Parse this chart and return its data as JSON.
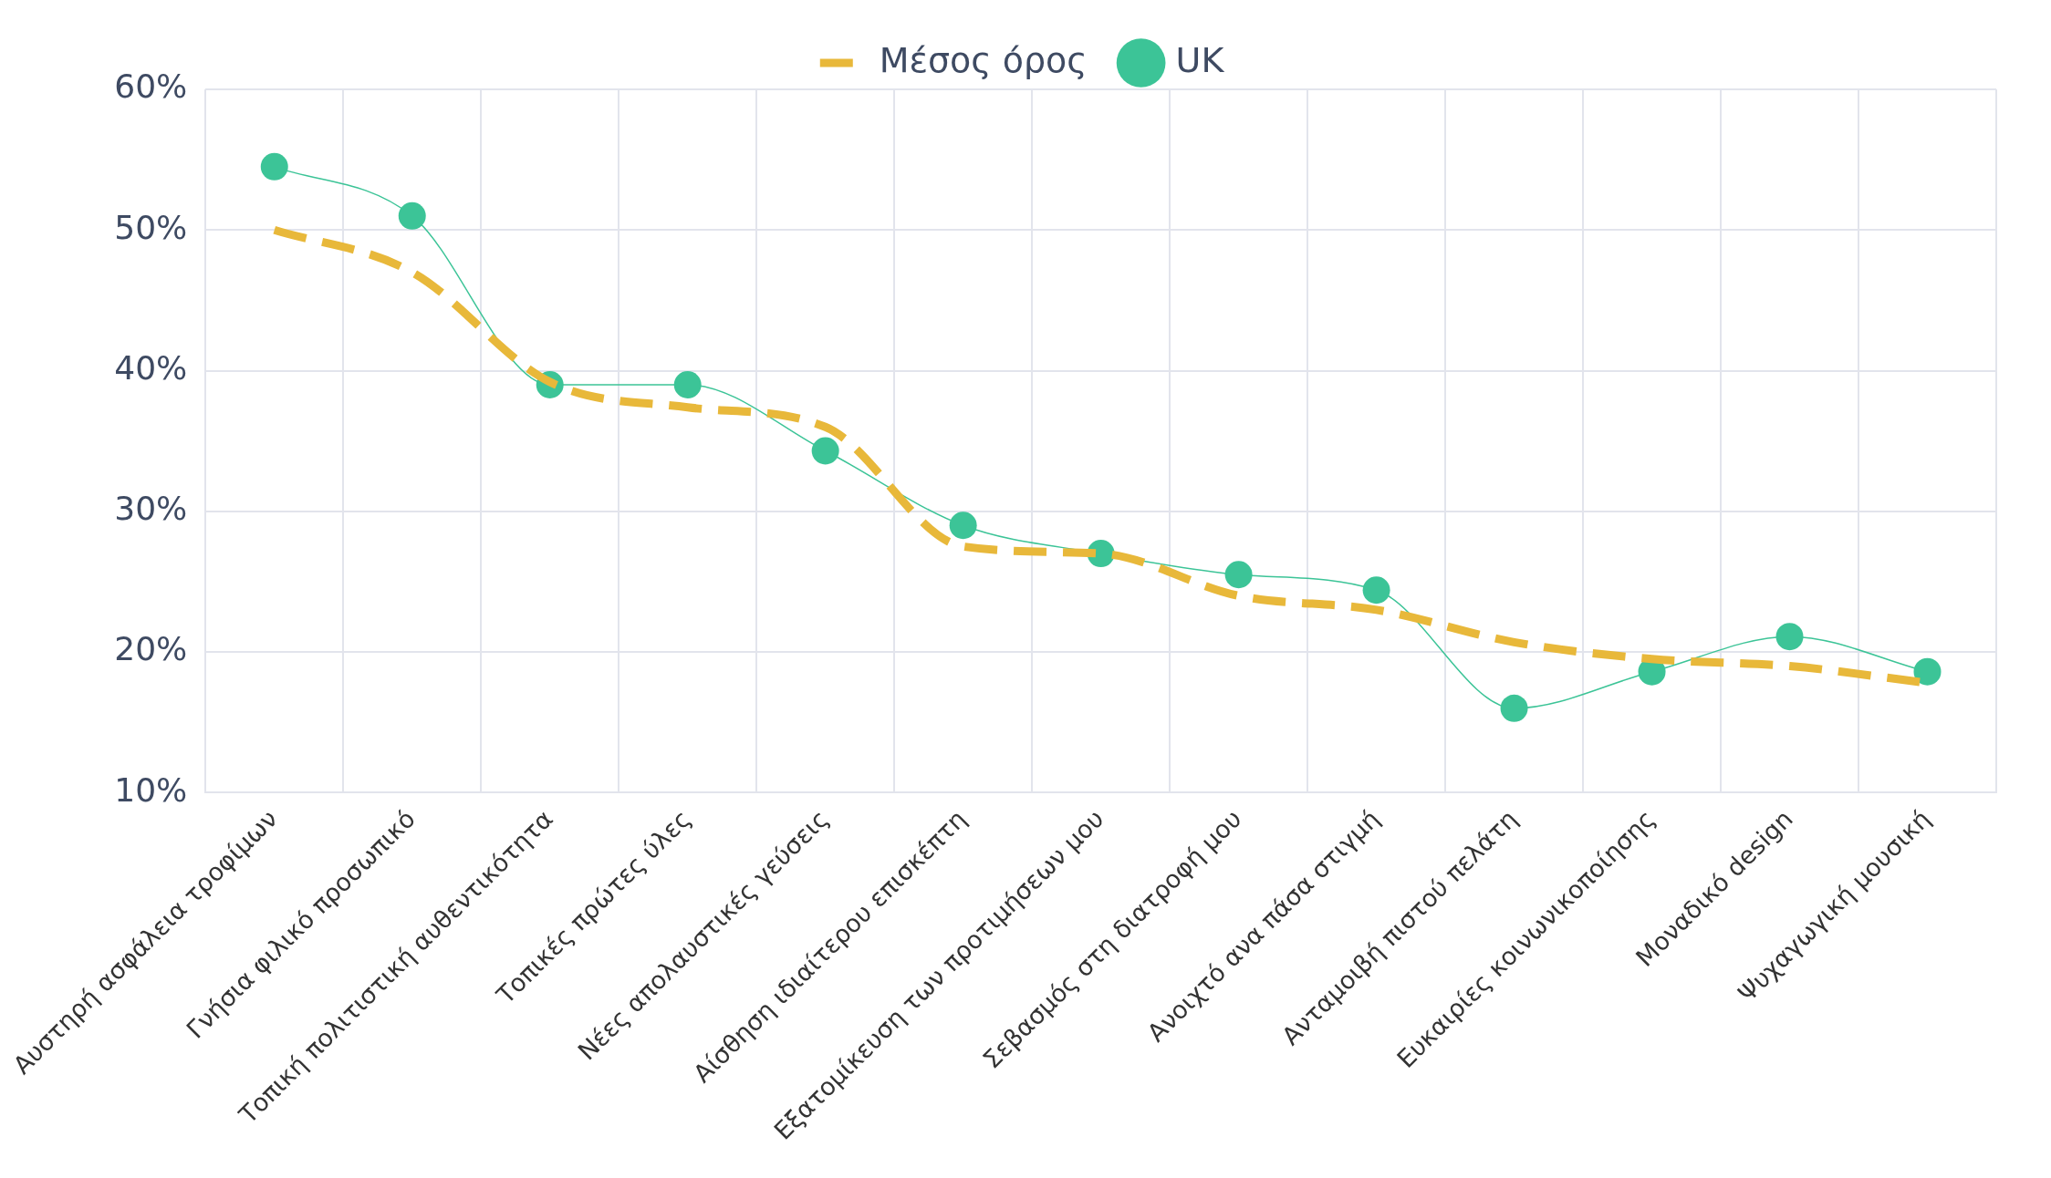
{
  "chart_data": {
    "type": "line",
    "categories": [
      "Αυστηρή ασφάλεια τροφίμων",
      "Γνήσια φιλικό προσωπικό",
      "Τοπική πολιτιστική αυθεντικότητα",
      "Τοπικές πρώτες ύλες",
      "Νέες απολαυστικές γεύσεις",
      "Αίσθηση ιδιαίτερου επισκέπτη",
      "Εξατομίκευση των προτιμήσεων μου",
      "Σεβασμός στη διατροφή μου",
      "Ανοιχτό ανα πάσα στιγμή",
      "Ανταμοιβή πιστού πελάτη",
      "Ευκαιρίες κοινωνικοποίησης",
      "Μοναδικό design",
      "Ψυχαγωγική μουσική"
    ],
    "series": [
      {
        "name": "Μέσος όρος",
        "color": "#e8b83a",
        "line_style": "dashed",
        "marker": "none",
        "values": [
          50,
          47,
          39.2,
          37.4,
          36,
          27.5,
          27,
          24,
          23,
          20.7,
          19.5,
          19,
          17.8
        ]
      },
      {
        "name": "UK",
        "color": "#3cc497",
        "line_style": "solid",
        "marker": "circle",
        "values": [
          54.5,
          51,
          39,
          39,
          34.3,
          29,
          27,
          25.5,
          24.4,
          16,
          18.6,
          21.1,
          18.6
        ]
      }
    ],
    "ylim": [
      10,
      60
    ],
    "yticks": [
      {
        "value": 10,
        "label": "10%"
      },
      {
        "value": 20,
        "label": "20%"
      },
      {
        "value": 30,
        "label": "30%"
      },
      {
        "value": 40,
        "label": "40%"
      },
      {
        "value": 50,
        "label": "50%"
      },
      {
        "value": 60,
        "label": "60%"
      }
    ],
    "grid": true,
    "legend": "top"
  }
}
